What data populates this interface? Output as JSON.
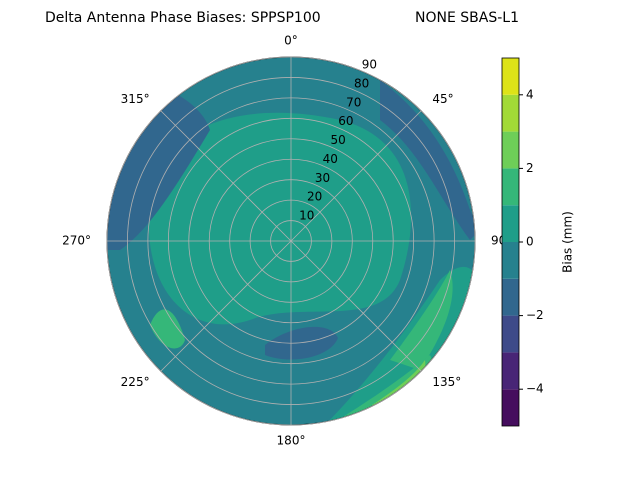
{
  "chart_data": {
    "type": "polar_contour",
    "title": "Delta Antenna Phase Biases: SPPSP100",
    "title_right": "NONE SBAS-L1",
    "rlim": [
      0,
      90
    ],
    "rticks": [
      10,
      20,
      30,
      40,
      50,
      60,
      70,
      80,
      90
    ],
    "theta_ticks": [
      {
        "value": 0,
        "label": "0°"
      },
      {
        "value": 45,
        "label": "45°"
      },
      {
        "value": 90,
        "label": "90°"
      },
      {
        "value": 135,
        "label": "135°"
      },
      {
        "value": 180,
        "label": "180°"
      },
      {
        "value": 225,
        "label": "225°"
      },
      {
        "value": 270,
        "label": "270°"
      },
      {
        "value": 315,
        "label": "315°"
      }
    ],
    "grid": true,
    "colorbar": {
      "label": "Bias (mm)",
      "levels": [
        -5,
        -4,
        -3,
        -2,
        -1,
        0,
        1,
        2,
        3,
        4,
        5
      ],
      "colors": [
        "#450d5e",
        "#482576",
        "#3e4a89",
        "#31678e",
        "#26818e",
        "#1f9e89",
        "#35b779",
        "#6ece58",
        "#a2da37",
        "#dde318"
      ],
      "ticks": [
        {
          "value": -4,
          "label": "−4"
        },
        {
          "value": -2,
          "label": "−2"
        },
        0,
        2,
        4
      ]
    }
  }
}
